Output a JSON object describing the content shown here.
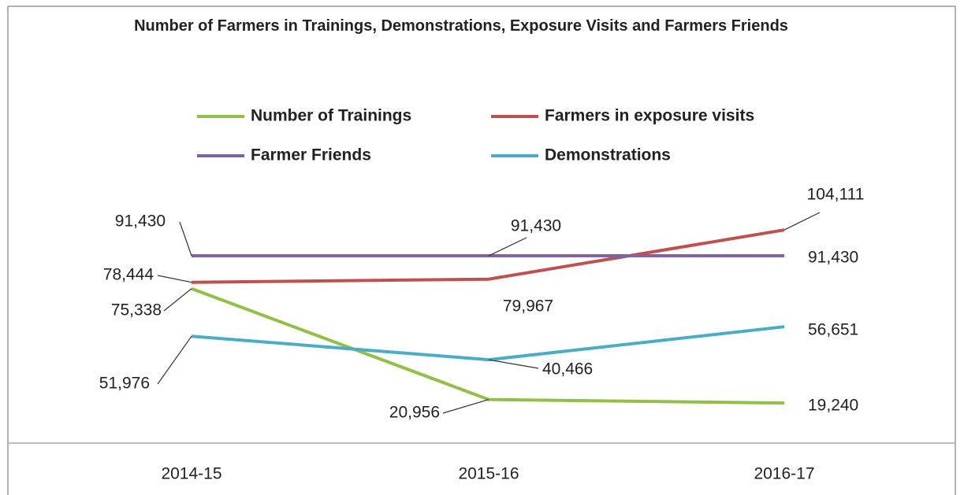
{
  "chart_data": {
    "type": "line",
    "title": "Number of Farmers in Trainings, Demonstrations, Exposure Visits and Farmers Friends",
    "categories": [
      "2014-15",
      "2015-16",
      "2016-17"
    ],
    "series": [
      {
        "name": "Number of Trainings",
        "color": "#92c047",
        "values": [
          75338,
          20956,
          19240
        ],
        "value_labels": [
          "75,338",
          "20,956",
          "19,240"
        ]
      },
      {
        "name": "Farmers in exposure visits",
        "color": "#c0504d",
        "values": [
          78444,
          79967,
          104111
        ],
        "value_labels": [
          "78,444",
          "79,967",
          "104,111"
        ]
      },
      {
        "name": "Farmer Friends",
        "color": "#8064a2",
        "values": [
          91430,
          91430,
          91430
        ],
        "value_labels": [
          "91,430",
          "91,430",
          "91,430"
        ]
      },
      {
        "name": "Demonstrations",
        "color": "#4bacc6",
        "values": [
          51976,
          40466,
          56651
        ],
        "value_labels": [
          "51,976",
          "40,466",
          "56,651"
        ]
      }
    ],
    "ylim": [
      0,
      120000
    ]
  }
}
